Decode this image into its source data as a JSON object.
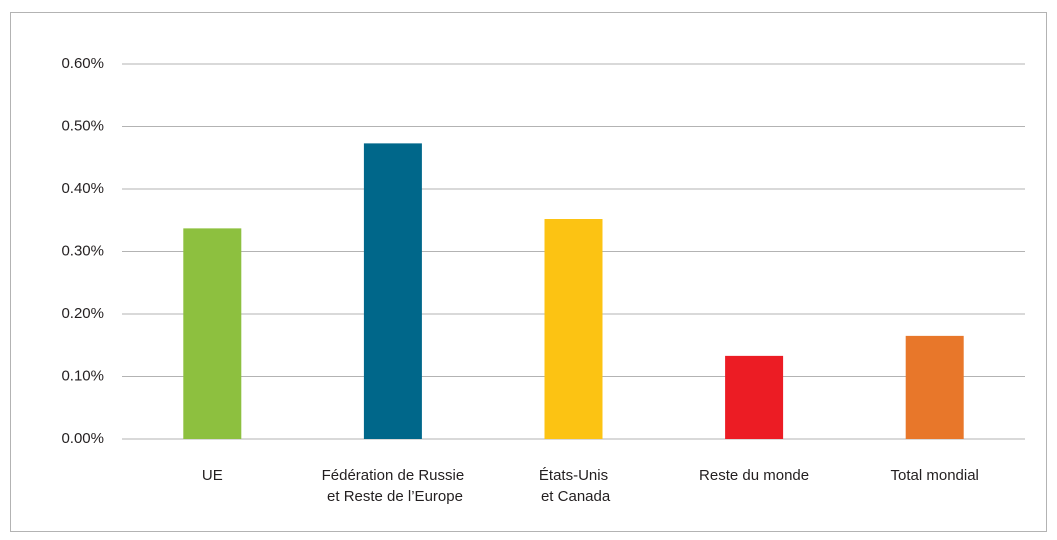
{
  "chart_data": {
    "type": "bar",
    "categories": [
      "UE",
      "Fédération de Russie\net Reste de l’Europe",
      "États-Unis\net Canada",
      "Reste du monde",
      "Total mondial"
    ],
    "values": [
      0.337,
      0.473,
      0.352,
      0.133,
      0.165
    ],
    "colors": [
      "#8dc03f",
      "#00678a",
      "#fcc313",
      "#ec1c24",
      "#e8772a"
    ],
    "ylim": [
      0,
      0.6
    ],
    "yticks": [
      {
        "value": 0,
        "label": "0.00%"
      },
      {
        "value": 0.1,
        "label": "0.10%"
      },
      {
        "value": 0.2,
        "label": "0.20%"
      },
      {
        "value": 0.3,
        "label": "0.30%"
      },
      {
        "value": 0.4,
        "label": "0.40%"
      },
      {
        "value": 0.5,
        "label": "0.50%"
      },
      {
        "value": 0.6,
        "label": "0.60%"
      }
    ],
    "grid": true
  }
}
